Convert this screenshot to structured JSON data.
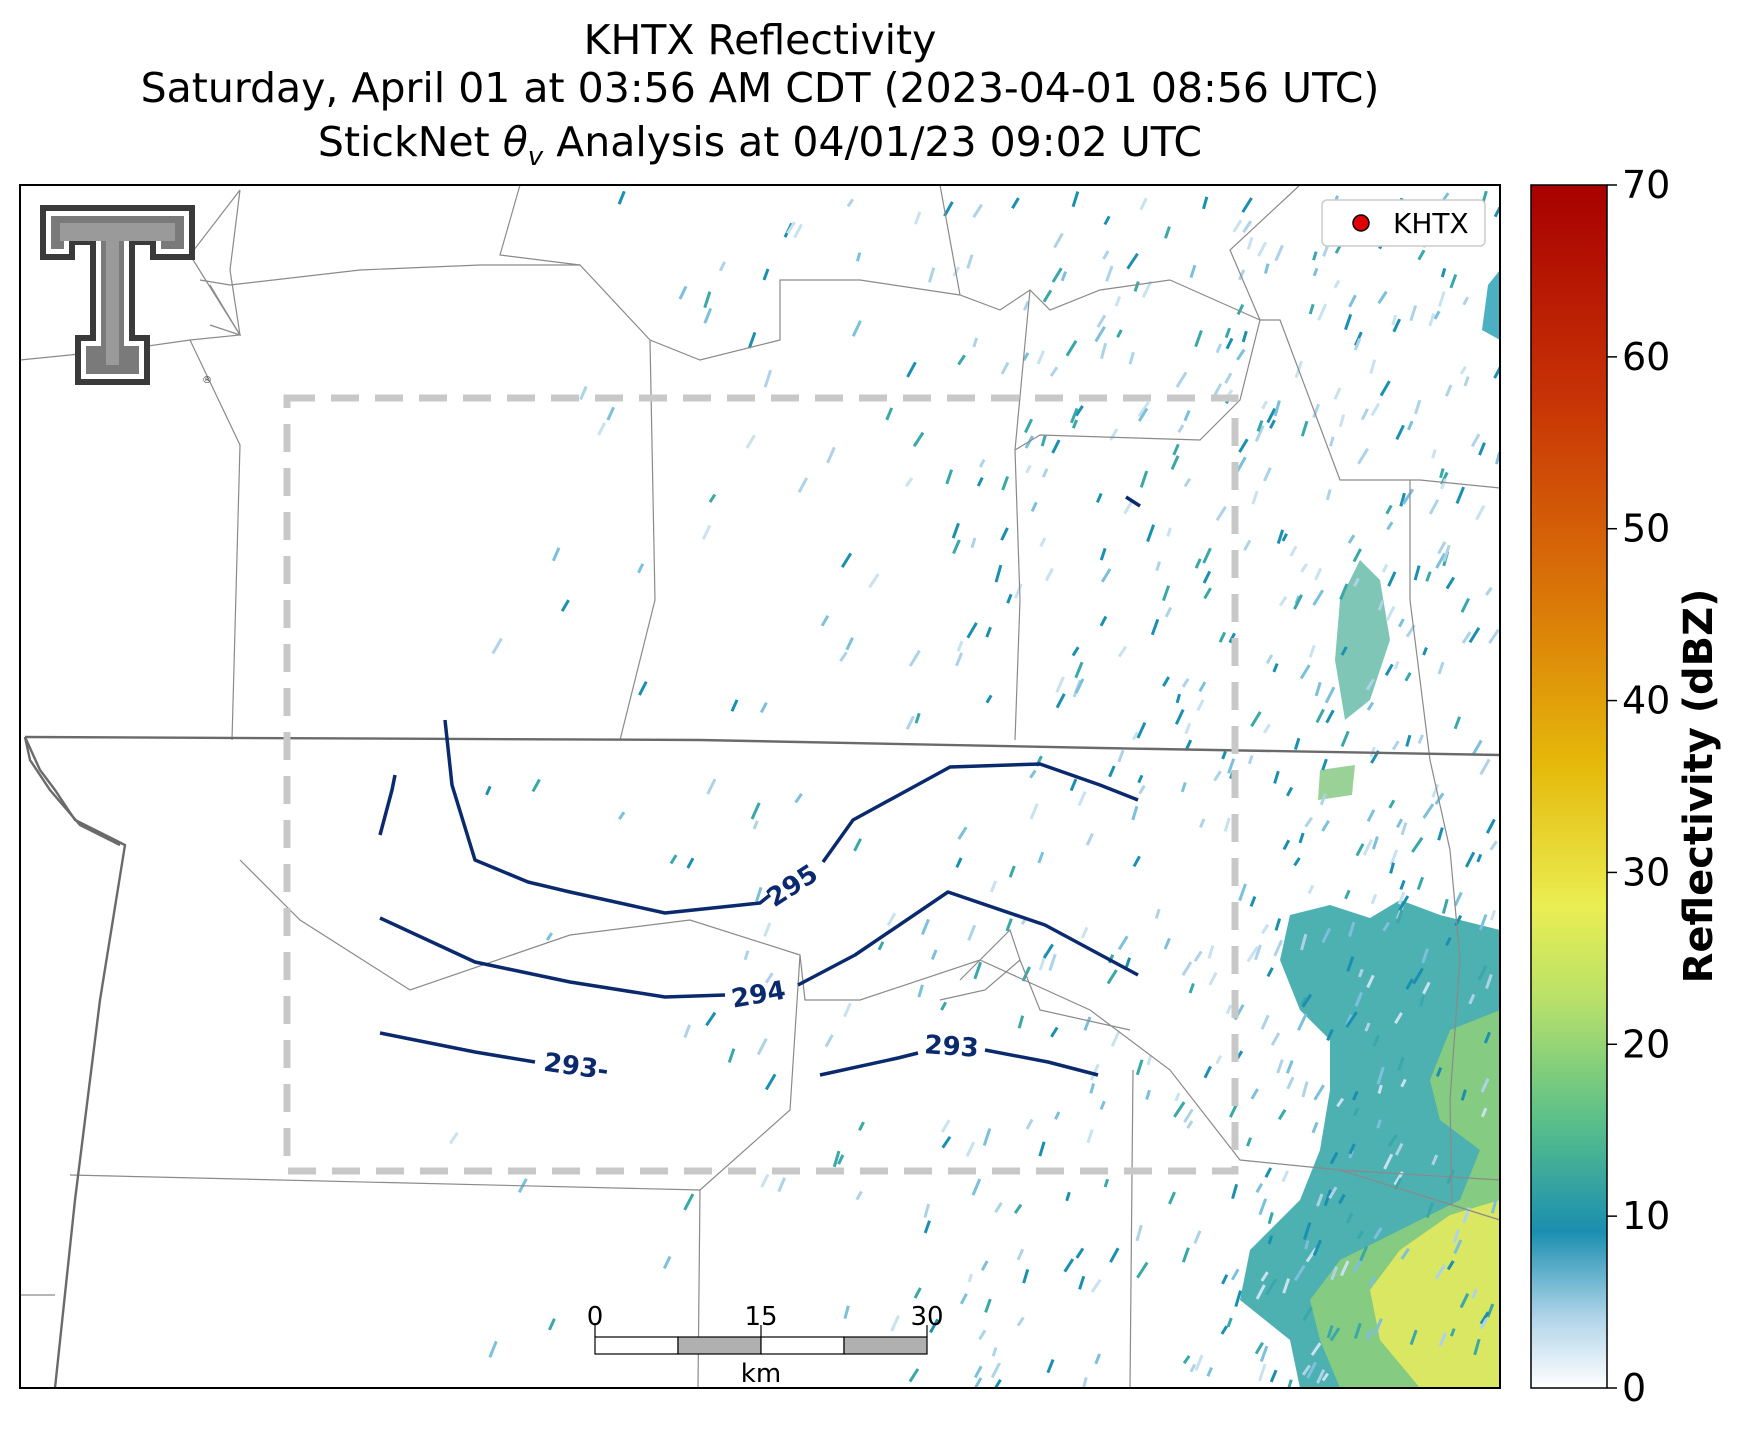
{
  "title": {
    "line1": "KHTX Reflectivity",
    "line2": "Saturday, April 01 at 03:56 AM CDT (2023-04-01 08:56 UTC)",
    "line3_prefix": "StickNet ",
    "line3_symbol": "θ",
    "line3_subscript": "v",
    "line3_suffix": " Analysis at 04/01/23 09:02 UTC"
  },
  "legend": {
    "marker_color": "#e00000",
    "label": "KHTX"
  },
  "contours": [
    {
      "label": "295"
    },
    {
      "label": "294"
    },
    {
      "label": "293"
    },
    {
      "label": "293-"
    }
  ],
  "scale_bar": {
    "ticks": [
      "0",
      "15",
      "30"
    ],
    "unit": "km"
  },
  "colorbar": {
    "label": "Reflectivity (dBZ)",
    "ticks": [
      "0",
      "10",
      "20",
      "30",
      "40",
      "50",
      "60",
      "70"
    ],
    "min": 0,
    "max": 70
  },
  "colors": {
    "contour": "#0b2a6e",
    "analysis_box": "#c8c8c8",
    "county_lines": "#8a8a8a",
    "state_lines": "#6a6a6a"
  },
  "logo": {
    "name": "texas-tech-double-t-logo"
  }
}
